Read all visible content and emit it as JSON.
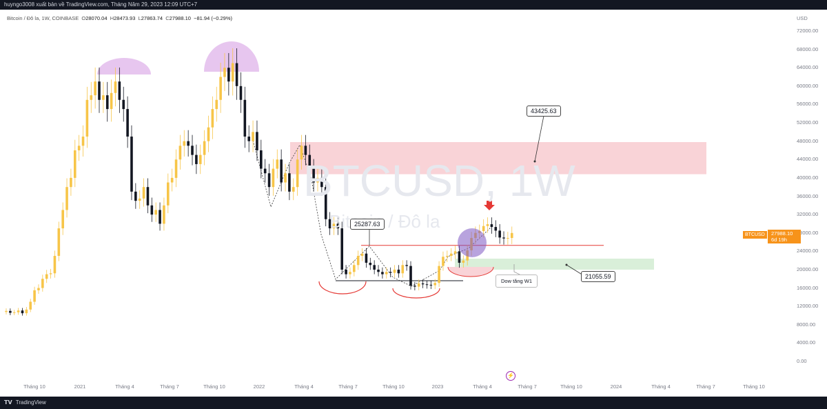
{
  "header": {
    "publisher_line": "huyngo3008 xuất bản về TradingView.com, Tháng Năm 29, 2023 12:09 UTC+7"
  },
  "legend": {
    "symbol": "Bitcoin / Đô la, 1W, COINBASE",
    "open_label": "O",
    "open": "28070.04",
    "high_label": "H",
    "high": "28473.93",
    "low_label": "L",
    "low": "27863.74",
    "close_label": "C",
    "close": "27988.10",
    "change": "−81.94 (−0.29%)"
  },
  "watermark": {
    "symbol": "BTCUSD, 1W",
    "name": "Bitcoin / Đô la"
  },
  "y_axis": {
    "currency": "USD",
    "ticks": [
      "72000.00",
      "68000.00",
      "64000.00",
      "60000.00",
      "56000.00",
      "52000.00",
      "48000.00",
      "44000.00",
      "40000.00",
      "36000.00",
      "32000.00",
      "28000.00",
      "24000.00",
      "20000.00",
      "16000.00",
      "12000.00",
      "8000.00",
      "4000.00",
      "0.00"
    ]
  },
  "x_axis": {
    "ticks": [
      {
        "label": "Tháng 10",
        "year": false
      },
      {
        "label": "2021",
        "year": true
      },
      {
        "label": "Tháng 4",
        "year": false
      },
      {
        "label": "Tháng 7",
        "year": false
      },
      {
        "label": "Tháng 10",
        "year": false
      },
      {
        "label": "2022",
        "year": true
      },
      {
        "label": "Tháng 4",
        "year": false
      },
      {
        "label": "Tháng 7",
        "year": false
      },
      {
        "label": "Tháng 10",
        "year": false
      },
      {
        "label": "2023",
        "year": true
      },
      {
        "label": "Tháng 4",
        "year": false
      },
      {
        "label": "Tháng 7",
        "year": false
      },
      {
        "label": "Tháng 10",
        "year": false
      },
      {
        "label": "2024",
        "year": true
      },
      {
        "label": "Tháng 4",
        "year": false
      },
      {
        "label": "Tháng 7",
        "year": false
      },
      {
        "label": "Tháng 10",
        "year": false
      }
    ]
  },
  "price_tag": {
    "symbol": "BTCUSD",
    "price": "27988.10",
    "countdown": "6d 19h"
  },
  "annotations": {
    "target_high": "43425.63",
    "resistance": "25287.63",
    "target_low": "21055.59",
    "note": "Dow tăng W1"
  },
  "footer": {
    "brand": "TradingView"
  },
  "colors": {
    "bull": "#f7c548",
    "bear": "#131722",
    "resistance_zone": "#f9d3d7",
    "support_zone": "#d9efd9",
    "red_line": "#e53935",
    "purple": "#7e57c2",
    "dome": "#e7c6ef"
  },
  "chart_data": {
    "type": "candlestick",
    "timeframe": "1W",
    "symbol": "BTCUSD",
    "ylim": [
      0,
      72000
    ],
    "approx_weekly_close": [
      11000,
      10600,
      10700,
      11100,
      10500,
      11300,
      13000,
      15500,
      16000,
      18000,
      19000,
      19200,
      23000,
      29000,
      33000,
      38000,
      40000,
      46000,
      47000,
      49000,
      57000,
      58000,
      61000,
      57000,
      58000,
      55000,
      58500,
      61000,
      57000,
      55000,
      49000,
      37000,
      35000,
      35500,
      38000,
      34000,
      32000,
      33000,
      30000,
      34000,
      39000,
      40000,
      44000,
      47000,
      48000,
      47000,
      45000,
      43000,
      45000,
      48000,
      51000,
      55000,
      57000,
      62000,
      64000,
      61000,
      65000,
      60000,
      57000,
      49000,
      48000,
      50000,
      46000,
      42000,
      41000,
      38000,
      42000,
      44000,
      39000,
      41000,
      37000,
      38000,
      44000,
      47000,
      45000,
      42000,
      39000,
      40000,
      38000,
      31000,
      29000,
      30000,
      29000,
      20000,
      19000,
      19500,
      21000,
      23000,
      23500,
      21500,
      21000,
      20000,
      19500,
      19000,
      19500,
      19300,
      20000,
      19200,
      21000,
      20800,
      16500,
      16300,
      17000,
      16800,
      16700,
      16600,
      17100,
      20800,
      22800,
      23000,
      23500,
      24000,
      21500,
      22000,
      24200,
      26900,
      28000,
      28400,
      29500,
      29900,
      29300,
      28500,
      27000,
      26800,
      26900,
      27988
    ],
    "zones": [
      {
        "name": "resistance",
        "from": 40800,
        "to": 47800
      },
      {
        "name": "support",
        "from": 20000,
        "to": 22400
      }
    ],
    "lines": [
      {
        "name": "resistance-line",
        "value": 25287.63
      },
      {
        "name": "neckline",
        "value": 17600
      }
    ],
    "labels": [
      "43425.63",
      "25287.63",
      "21055.59",
      "Dow tăng W1"
    ]
  }
}
